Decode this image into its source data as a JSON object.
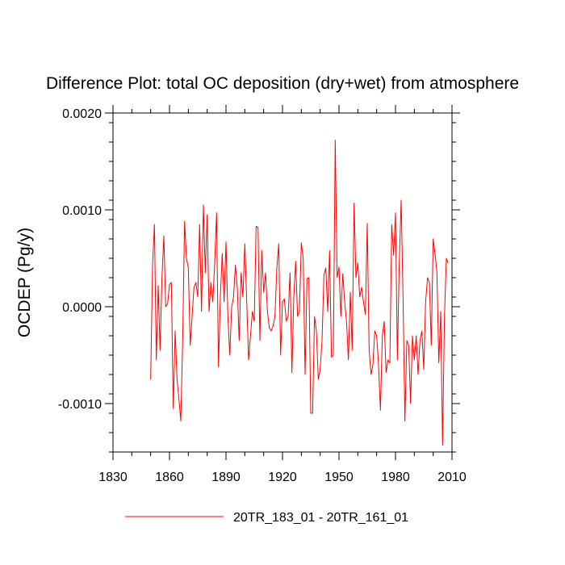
{
  "chart_data": {
    "type": "line",
    "title": "Difference Plot: total OC deposition (dry+wet) from atmosphere",
    "xlabel": "",
    "ylabel": "OCDEP  (Pg/y)",
    "xlim": [
      1830,
      2010
    ],
    "ylim": [
      -0.0015,
      0.002
    ],
    "x_ticks": [
      1830,
      1860,
      1890,
      1920,
      1950,
      1980,
      2010
    ],
    "x_tick_labels": [
      "1830",
      "1860",
      "1890",
      "1920",
      "1950",
      "1980",
      "2010"
    ],
    "y_ticks": [
      -0.001,
      0.0,
      0.001,
      0.002
    ],
    "y_tick_labels": [
      "-0.0010",
      "0.0000",
      "0.0010",
      "0.0020"
    ],
    "legend": {
      "position": "bottom-center",
      "entries": [
        "20TR_183_01 - 20TR_161_01"
      ]
    },
    "series": [
      {
        "name": "20TR_183_01 - 20TR_161_01",
        "color": "#ff0000",
        "x_start": 1850,
        "x_step": 1,
        "values": [
          -0.00075,
          0.00042,
          0.00085,
          -0.00055,
          0.00022,
          -0.00045,
          0.0003,
          0.00073,
          0.0,
          3e-05,
          0.00023,
          0.00025,
          -0.00105,
          -0.00025,
          -0.00075,
          -0.00095,
          -0.00118,
          -0.00035,
          0.00088,
          0.0005,
          0.0004,
          -0.0004,
          -0.0001,
          0.0002,
          0.00025,
          0.0001,
          0.00085,
          -5e-05,
          0.00105,
          0.00035,
          0.00095,
          -5e-05,
          0.00025,
          5e-05,
          0.00045,
          0.00097,
          -0.00062,
          0.0001,
          0.00055,
          5e-05,
          0.00067,
          -0.0001,
          -0.0005,
          0.0,
          0.0001,
          0.00043,
          0.0002,
          -0.00035,
          0.00035,
          0.0001,
          0.00065,
          5e-05,
          -0.00055,
          -0.0003,
          -5e-05,
          -0.00015,
          0.00083,
          0.00082,
          -0.00035,
          0.00058,
          0.00015,
          0.00035,
          -5e-05,
          -0.00022,
          -0.00025,
          -0.0002,
          -0.0001,
          0.0004,
          0.00065,
          -0.0005,
          5e-05,
          8e-05,
          -0.00015,
          -0.0001,
          0.00035,
          -0.00068,
          0.0001,
          0.00047,
          -0.0001,
          -5e-05,
          0.00066,
          0.0005,
          -0.0007,
          0.00029,
          0.0003,
          -0.0011,
          -0.0011,
          -0.0001,
          -0.00025,
          -0.00075,
          -0.00065,
          -0.00035,
          0.00033,
          0.0004,
          -5e-05,
          0.00058,
          -0.00052,
          -0.0005,
          0.00172,
          0.0003,
          0.00041,
          -0.0001,
          0.00034,
          5e-05,
          -0.00015,
          -0.00055,
          0.00015,
          -0.00045,
          0.00107,
          0.0003,
          0.00045,
          0.0001,
          0.0002,
          5e-05,
          -8e-05,
          0.00086,
          -0.00045,
          -0.0007,
          -0.0006,
          -0.00025,
          -0.0003,
          -0.0006,
          -0.00107,
          -0.0003,
          -0.00015,
          -0.00068,
          -0.00055,
          -0.00058,
          0.00085,
          0.00053,
          0.00097,
          -0.00055,
          0.00045,
          0.0011,
          0.0001,
          -0.00118,
          -0.00035,
          -0.0004,
          -0.001,
          -0.0003,
          -0.00055,
          -0.0003,
          -0.0007,
          -0.00035,
          -0.00025,
          -0.00065,
          5e-05,
          0.0003,
          0.00025,
          -0.0004,
          0.0007,
          0.00055,
          0.00035,
          -0.00058,
          -5e-05,
          -0.00143,
          -0.0001,
          0.0005,
          0.00045
        ]
      }
    ]
  }
}
